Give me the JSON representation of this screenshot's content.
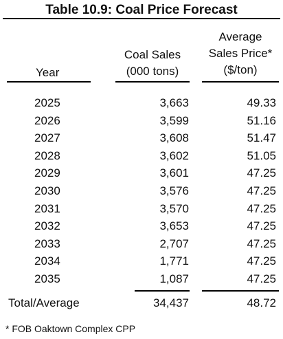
{
  "title": "Table 10.9: Coal Price Forecast",
  "headers": {
    "year": "Year",
    "sales_line1": "Coal Sales",
    "sales_line2": "(000 tons)",
    "price_line1": "Average",
    "price_line2": "Sales Price*",
    "price_line3": "($/ton)"
  },
  "rows": [
    {
      "year": "2025",
      "sales": "3,663",
      "price": "49.33"
    },
    {
      "year": "2026",
      "sales": "3,599",
      "price": "51.16"
    },
    {
      "year": "2027",
      "sales": "3,608",
      "price": "51.47"
    },
    {
      "year": "2028",
      "sales": "3,602",
      "price": "51.05"
    },
    {
      "year": "2029",
      "sales": "3,601",
      "price": "47.25"
    },
    {
      "year": "2030",
      "sales": "3,576",
      "price": "47.25"
    },
    {
      "year": "2031",
      "sales": "3,570",
      "price": "47.25"
    },
    {
      "year": "2032",
      "sales": "3,653",
      "price": "47.25"
    },
    {
      "year": "2033",
      "sales": "2,707",
      "price": "47.25"
    },
    {
      "year": "2034",
      "sales": "1,771",
      "price": "47.25"
    },
    {
      "year": "2035",
      "sales": "1,087",
      "price": "47.25"
    }
  ],
  "total": {
    "label": "Total/Average",
    "sales": "34,437",
    "price": "48.72"
  },
  "footnote": "* FOB Oaktown Complex CPP"
}
